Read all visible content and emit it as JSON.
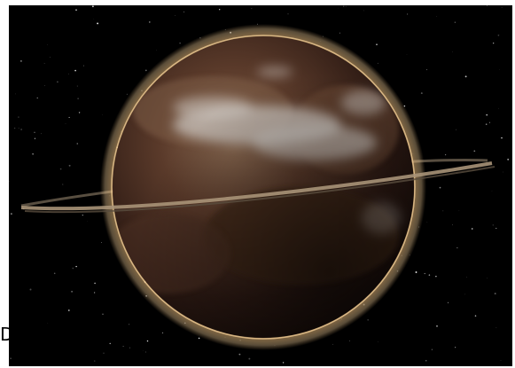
{
  "image": {
    "subject": "ringed-planet",
    "background": "starfield",
    "colors": {
      "space": "#000000",
      "frame": "#ffffff",
      "planet_dark": "#2a1812",
      "planet_mid": "#5a3a2a",
      "planet_light": "#8a6a52",
      "cloud": "#c8c2bc",
      "atmosphere_glow": "#e8b878",
      "ring": "#a89478"
    },
    "edge_glyph": "D"
  }
}
